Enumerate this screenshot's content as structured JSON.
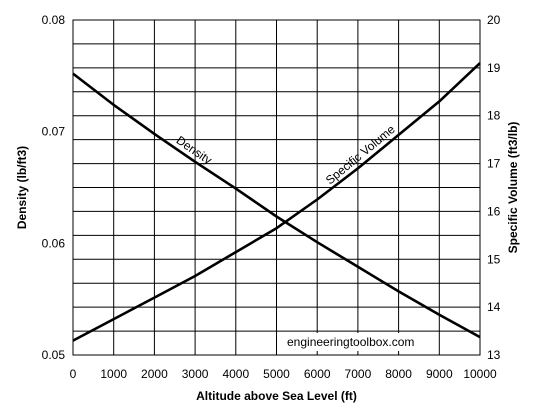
{
  "chart_data": {
    "type": "line",
    "x": [
      0,
      1000,
      2000,
      3000,
      4000,
      5000,
      6000,
      7000,
      8000,
      9000,
      10000
    ],
    "xlabel": "Altitude above Sea Level (ft)",
    "xlim": [
      0,
      10000
    ],
    "xticks": [
      "0",
      "1000",
      "2000",
      "3000",
      "4000",
      "5000",
      "6000",
      "7000",
      "8000",
      "9000",
      "10000"
    ],
    "y_left": {
      "label": "Density (lb/ft3)",
      "lim": [
        0.05,
        0.08
      ],
      "ticks": [
        "0.05",
        "0.06",
        "0.07",
        "0.08"
      ]
    },
    "y_right": {
      "label": "Specific Volume (ft3/lb)",
      "lim": [
        13,
        20
      ],
      "ticks": [
        "13",
        "14",
        "15",
        "16",
        "17",
        "18",
        "19",
        "20"
      ]
    },
    "series": [
      {
        "name": "Density",
        "axis": "left",
        "values": [
          0.0752,
          0.0724,
          0.0698,
          0.0673,
          0.0649,
          0.0624,
          0.0601,
          0.0579,
          0.0557,
          0.0536,
          0.0516
        ]
      },
      {
        "name": "Specific Volume",
        "axis": "right",
        "values": [
          13.3,
          13.75,
          14.2,
          14.65,
          15.15,
          15.65,
          16.25,
          16.9,
          17.6,
          18.3,
          19.1
        ]
      }
    ],
    "grid": true,
    "watermark": "engineeringtoolbox.com",
    "line_color": "#000000",
    "grid_color": "#000000",
    "background": "#ffffff"
  }
}
